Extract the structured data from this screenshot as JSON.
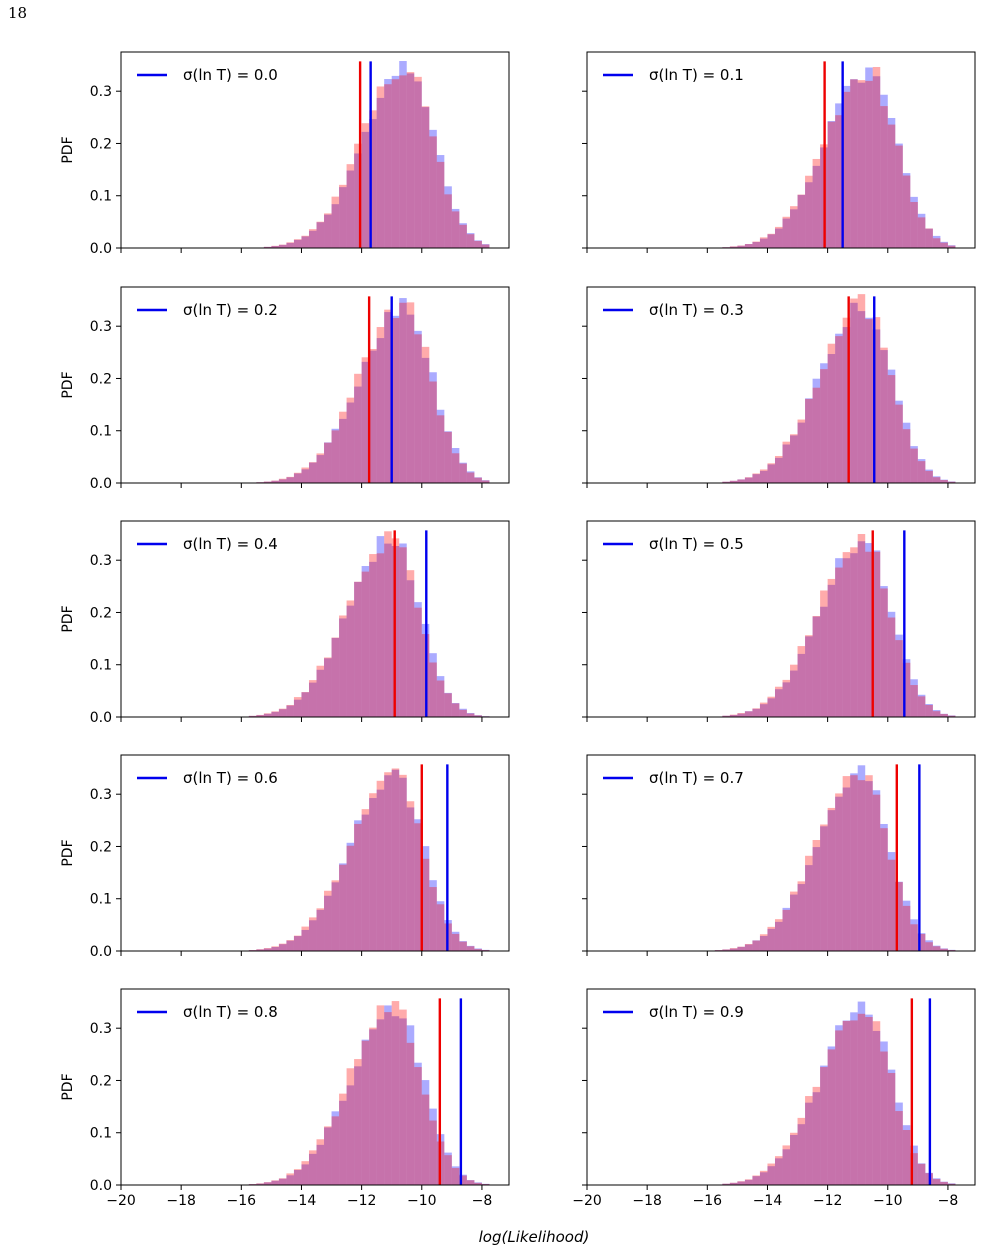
{
  "page": {
    "number": "18"
  },
  "chart_data": {
    "type": "bar",
    "description_type": "histogram-grid",
    "shared_x_label": "log(Likelihood)",
    "y_label": "PDF",
    "x_range": [
      -20,
      -7.1
    ],
    "y_range": [
      0,
      0.375
    ],
    "x_ticks": [
      -20,
      -18,
      -16,
      -14,
      -12,
      -10,
      -8
    ],
    "x_tick_labels": [
      "−20",
      "−18",
      "−16",
      "−14",
      "−12",
      "−10",
      "−8"
    ],
    "y_ticks": [
      0.0,
      0.1,
      0.2,
      0.3
    ],
    "y_tick_labels": [
      "0.0",
      "0.1",
      "0.2",
      "0.3"
    ],
    "colors": {
      "blue_hist": "#0000ff",
      "red_hist": "#ff0000",
      "blue_line": "#0000ee",
      "red_line": "#ee0000",
      "hist_alpha": 0.33
    },
    "legend": {
      "placement": "top-left",
      "entry_prefix": "σ(ln T) = "
    },
    "panels": [
      {
        "sigma": "0.0",
        "peak": -10.5,
        "blue_line": -11.7,
        "red_line": -12.05,
        "show_ylabels": true,
        "show_xlabels": false
      },
      {
        "sigma": "0.1",
        "peak": -10.6,
        "blue_line": -11.5,
        "red_line": -12.1,
        "show_ylabels": false,
        "show_xlabels": false
      },
      {
        "sigma": "0.2",
        "peak": -10.6,
        "blue_line": -11.0,
        "red_line": -11.75,
        "show_ylabels": true,
        "show_xlabels": false
      },
      {
        "sigma": "0.3",
        "peak": -10.8,
        "blue_line": -10.45,
        "red_line": -11.3,
        "show_ylabels": false,
        "show_xlabels": false
      },
      {
        "sigma": "0.4",
        "peak": -11.0,
        "blue_line": -9.85,
        "red_line": -10.9,
        "show_ylabels": true,
        "show_xlabels": false
      },
      {
        "sigma": "0.5",
        "peak": -10.8,
        "blue_line": -9.45,
        "red_line": -10.5,
        "show_ylabels": false,
        "show_xlabels": false
      },
      {
        "sigma": "0.6",
        "peak": -10.9,
        "blue_line": -9.15,
        "red_line": -10.0,
        "show_ylabels": true,
        "show_xlabels": false
      },
      {
        "sigma": "0.7",
        "peak": -10.9,
        "blue_line": -8.95,
        "red_line": -9.7,
        "show_ylabels": false,
        "show_xlabels": false
      },
      {
        "sigma": "0.8",
        "peak": -10.9,
        "blue_line": -8.7,
        "red_line": -9.4,
        "show_ylabels": true,
        "show_xlabels": true
      },
      {
        "sigma": "0.9",
        "peak": -10.8,
        "blue_line": -8.6,
        "red_line": -9.2,
        "show_ylabels": false,
        "show_xlabels": true
      }
    ]
  }
}
